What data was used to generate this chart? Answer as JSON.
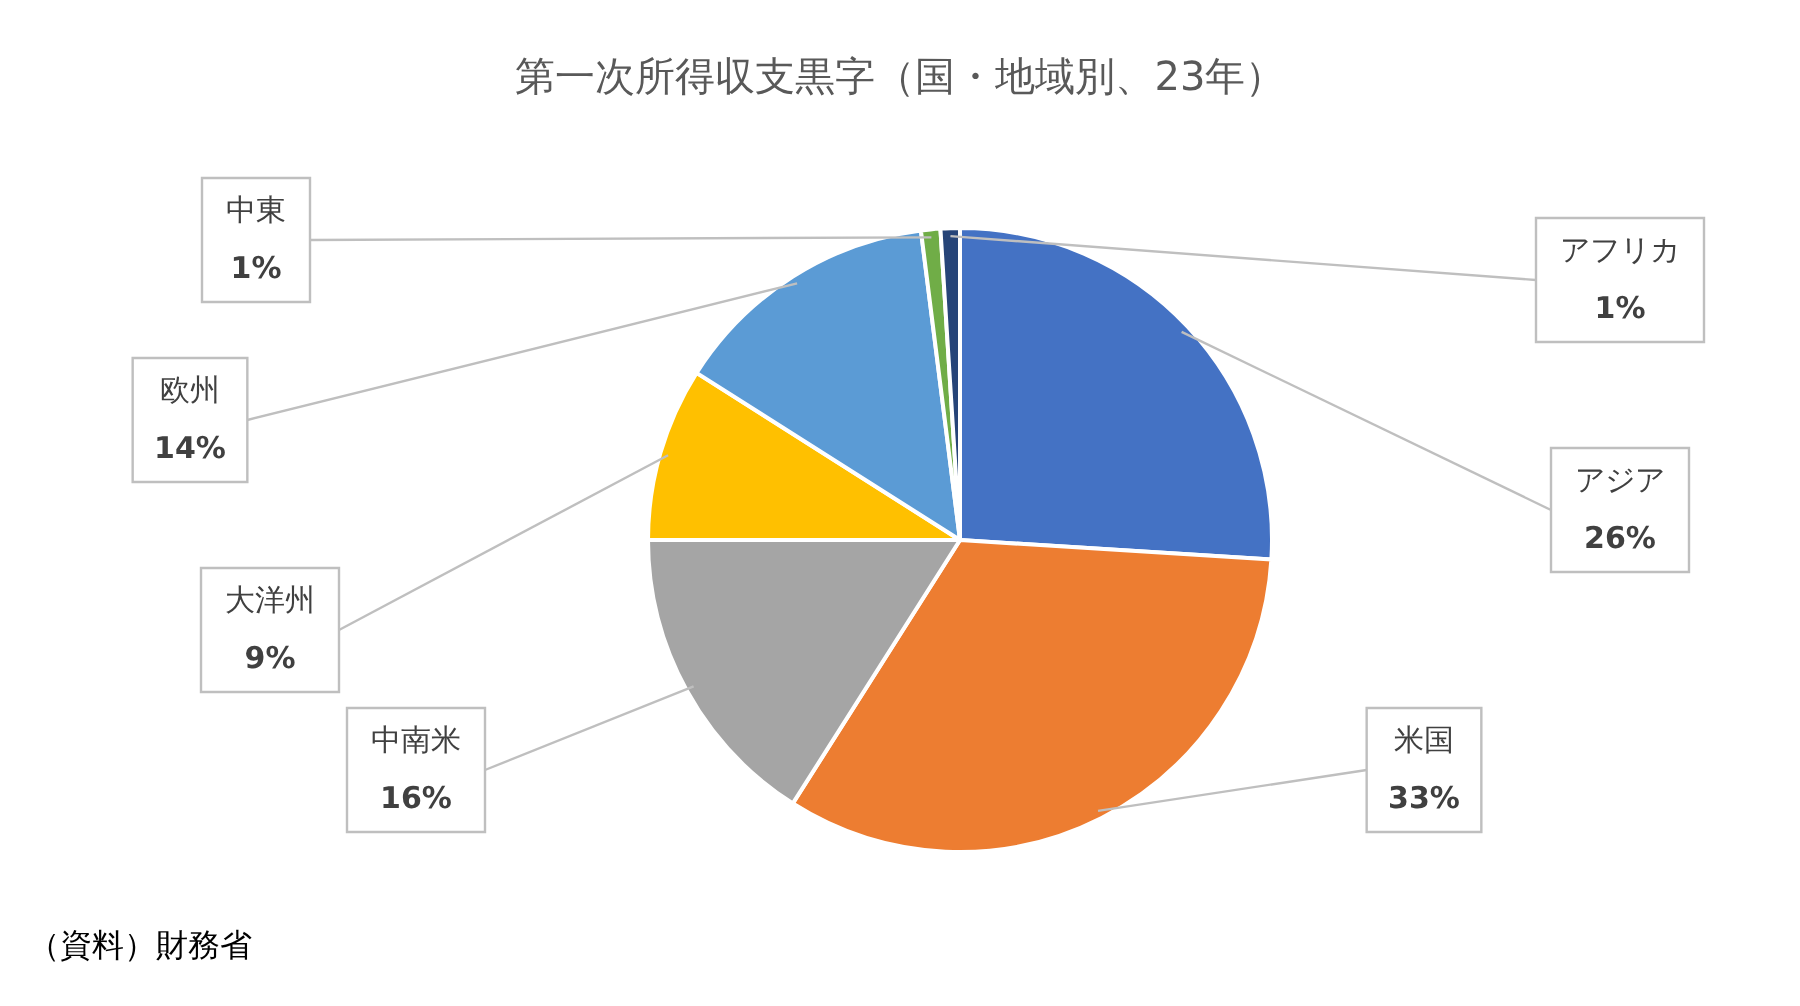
{
  "chart_data": {
    "type": "pie",
    "title": "第一次所得収支黒字（国・地域別、23年）",
    "categories": [
      "アジア",
      "米国",
      "中南米",
      "大洋州",
      "欧州",
      "中東",
      "アフリカ"
    ],
    "values": [
      26,
      33,
      16,
      9,
      14,
      1,
      1
    ],
    "value_labels": [
      "26%",
      "33%",
      "16%",
      "9%",
      "14%",
      "1%",
      "1%"
    ],
    "colors": [
      "#4472c4",
      "#ed7d31",
      "#a5a5a5",
      "#ffc000",
      "#5b9bd5",
      "#70ad47",
      "#264478"
    ],
    "legend": false,
    "annotations": [
      "（資料）財務省"
    ]
  }
}
